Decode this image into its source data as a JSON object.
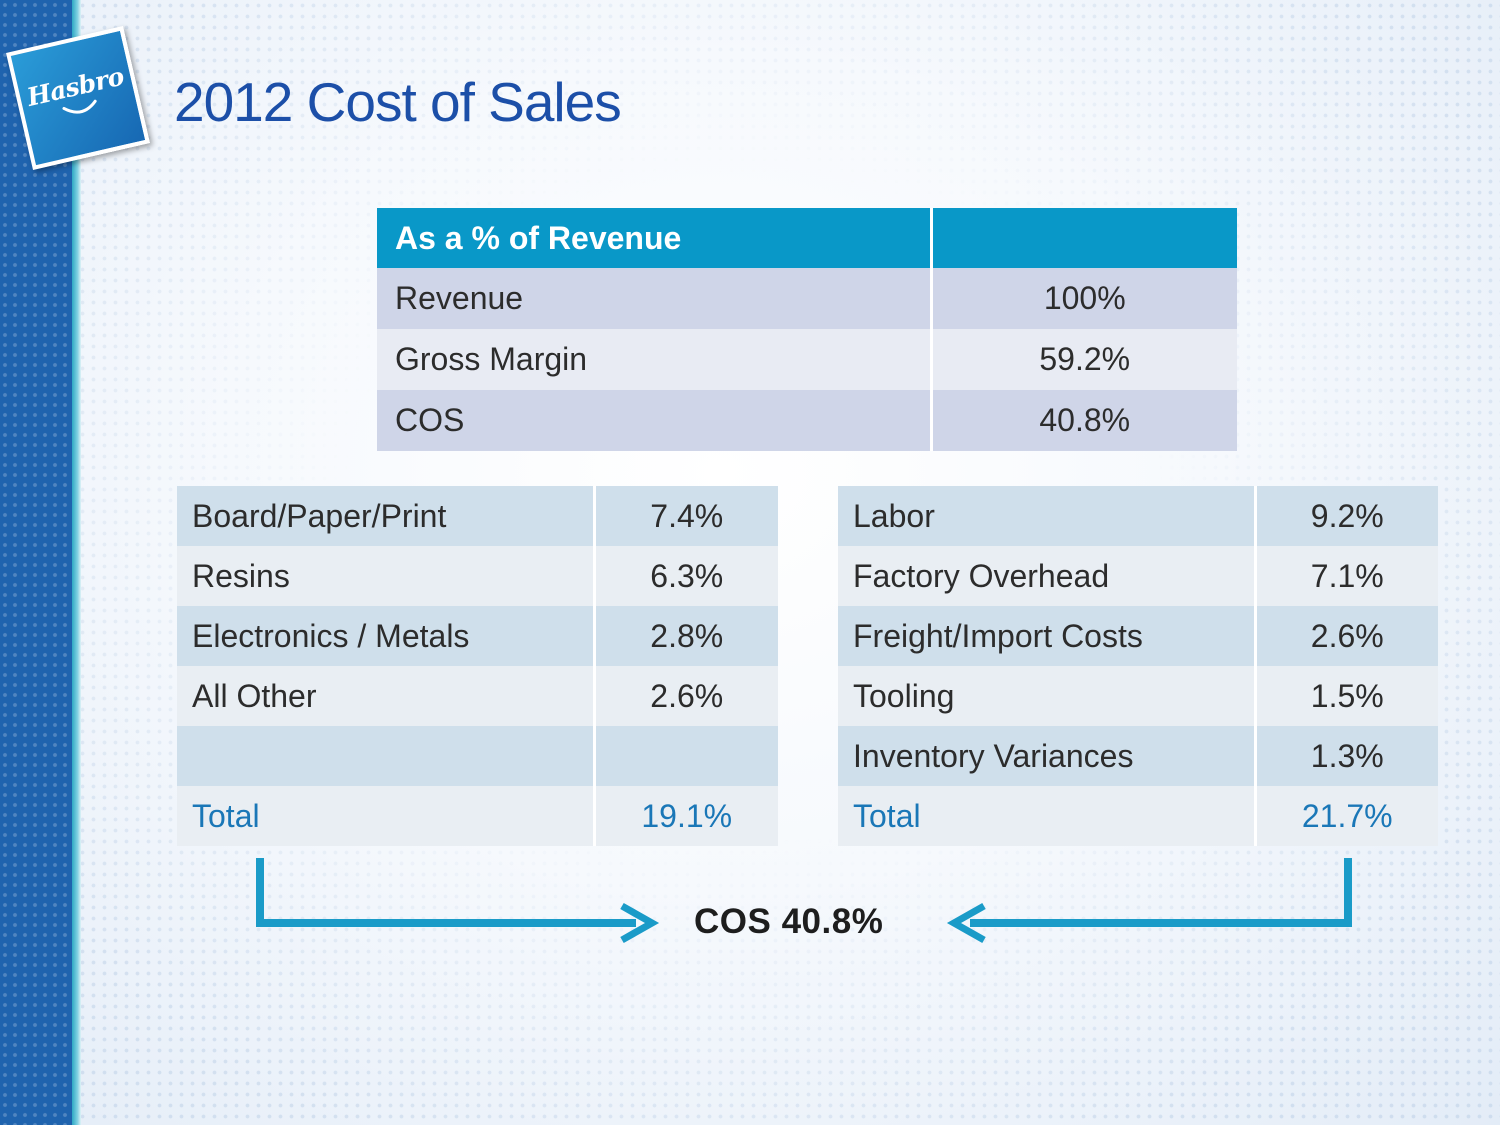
{
  "brand": {
    "logo_text": "Hasbro"
  },
  "title": "2012 Cost of Sales",
  "summary_table": {
    "header": "As a % of Revenue",
    "rows": [
      {
        "label": "Revenue",
        "value": "100%"
      },
      {
        "label": "Gross Margin",
        "value": "59.2%"
      },
      {
        "label": "COS",
        "value": "40.8%"
      }
    ]
  },
  "materials_table": {
    "rows": [
      {
        "label": "Board/Paper/Print",
        "value": "7.4%"
      },
      {
        "label": "Resins",
        "value": "6.3%"
      },
      {
        "label": "Electronics / Metals",
        "value": "2.8%"
      },
      {
        "label": "All Other",
        "value": "2.6%"
      },
      {
        "label": "",
        "value": ""
      }
    ],
    "total": {
      "label": "Total",
      "value": "19.1%"
    }
  },
  "other_costs_table": {
    "rows": [
      {
        "label": "Labor",
        "value": "9.2%"
      },
      {
        "label": "Factory Overhead",
        "value": "7.1%"
      },
      {
        "label": "Freight/Import Costs",
        "value": "2.6%"
      },
      {
        "label": "Tooling",
        "value": "1.5%"
      },
      {
        "label": "Inventory Variances",
        "value": "1.3%"
      }
    ],
    "total": {
      "label": "Total",
      "value": "21.7%"
    }
  },
  "cos_result": "COS 40.8%",
  "colors": {
    "title": "#1c4fa8",
    "header_bg": "#0998c8",
    "arrow": "#1a9bc8",
    "total_text": "#1a77b7"
  }
}
